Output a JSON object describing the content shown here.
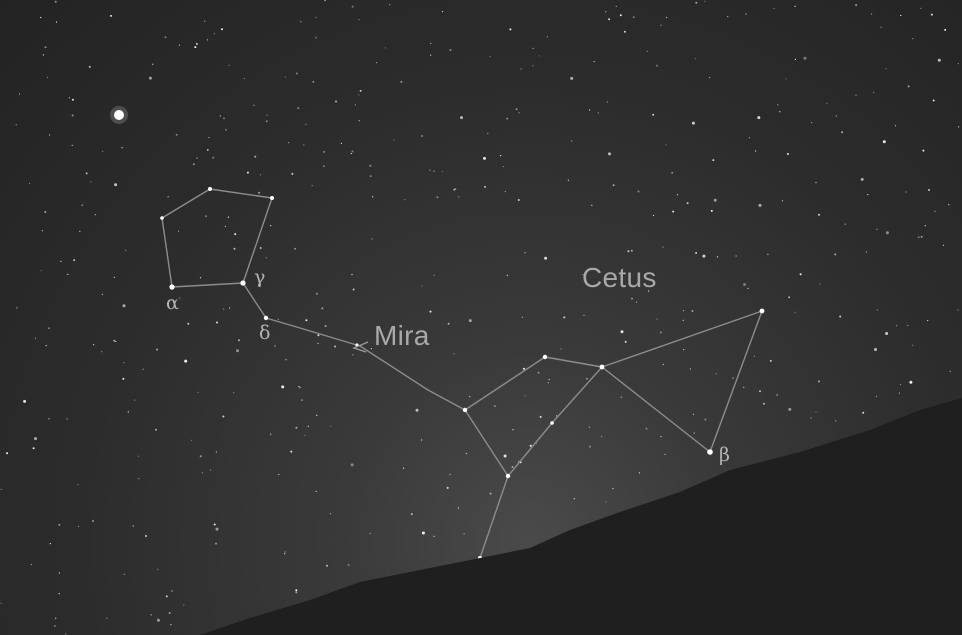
{
  "labels": {
    "cetus": "Cetus",
    "mira": "Mira",
    "alpha": "α",
    "gamma": "γ",
    "delta": "δ",
    "beta": "β"
  },
  "colors": {
    "sky": "#2b2b2b",
    "horizon": "#1f1f1f",
    "lines": "#8a8a8a",
    "stars": "#ffffff",
    "label_text": "#a9a9a9"
  }
}
